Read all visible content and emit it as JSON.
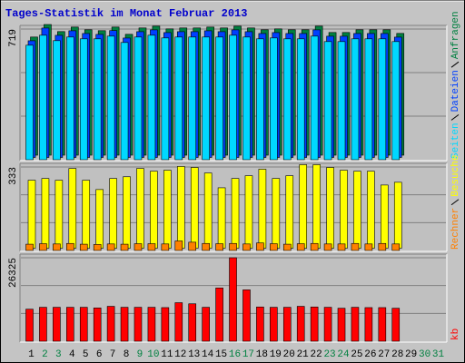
{
  "chart_data": {
    "type": "bar",
    "title": "Tages-Statistik im Monat Februar 2013",
    "categories": [
      "1",
      "2",
      "3",
      "4",
      "5",
      "6",
      "7",
      "8",
      "9",
      "10",
      "11",
      "12",
      "13",
      "14",
      "15",
      "16",
      "17",
      "18",
      "19",
      "20",
      "21",
      "22",
      "23",
      "24",
      "25",
      "26",
      "27",
      "28",
      "29",
      "30",
      "31"
    ],
    "category_colors": [
      "#000000",
      "#008040",
      "#008040",
      "#000000",
      "#000000",
      "#000000",
      "#000000",
      "#000000",
      "#008040",
      "#008040",
      "#000000",
      "#000000",
      "#000000",
      "#000000",
      "#000000",
      "#008040",
      "#008040",
      "#000000",
      "#000000",
      "#000000",
      "#000000",
      "#000000",
      "#008040",
      "#008040",
      "#000000",
      "#000000",
      "#000000",
      "#000000",
      "#000000",
      "#008040",
      "#008040"
    ],
    "panels": [
      {
        "ylim": [
          0,
          719
        ],
        "yticks": [
          719
        ],
        "series": [
          {
            "name": "Anfragen",
            "color": "#008040",
            "values": [
              650,
              719,
              680,
              705,
              690,
              685,
              705,
              665,
              700,
              710,
              695,
              700,
              700,
              705,
              700,
              710,
              700,
              690,
              695,
              690,
              690,
              710,
              675,
              675,
              690,
              690,
              690,
              670,
              null,
              null,
              null
            ]
          },
          {
            "name": "Dateien",
            "color": "#0040ff",
            "values": [
              642,
              712,
              672,
              697,
              682,
              677,
              698,
              657,
              692,
              702,
              687,
              692,
              692,
              697,
              692,
              702,
              692,
              682,
              687,
              682,
              682,
              702,
              667,
              667,
              682,
              682,
              682,
              662,
              null,
              null,
              null
            ]
          },
          {
            "name": "Seiten",
            "color": "#00d8ff",
            "values": [
              630,
              685,
              655,
              675,
              665,
              665,
              680,
              645,
              675,
              685,
              670,
              675,
              675,
              675,
              675,
              685,
              675,
              665,
              670,
              665,
              665,
              680,
              650,
              650,
              665,
              665,
              665,
              650,
              null,
              null,
              null
            ]
          }
        ]
      },
      {
        "ylim": [
          0,
          333
        ],
        "yticks": [
          333
        ],
        "series": [
          {
            "name": "Besuche",
            "color": "#ffff00",
            "values": [
              271,
              278,
              271,
              318,
              271,
              234,
              278,
              285,
              318,
              307,
              311,
              326,
              322,
              300,
              241,
              278,
              289,
              315,
              278,
              289,
              333,
              333,
              322,
              311,
              307,
              307,
              252,
              263,
              null,
              null,
              null
            ]
          },
          {
            "name": "Rechner",
            "color": "#ff8000",
            "values": [
              25,
              27,
              26,
              28,
              25,
              24,
              26,
              25,
              27,
              27,
              26,
              38,
              33,
              28,
              27,
              28,
              26,
              30,
              27,
              25,
              27,
              28,
              26,
              26,
              28,
              26,
              28,
              26,
              null,
              null,
              null
            ]
          }
        ]
      },
      {
        "ylim": [
          0,
          26325
        ],
        "yticks": [
          26325
        ],
        "series": [
          {
            "name": "kb",
            "color": "#ff0000",
            "values": [
              10100,
              10700,
              10700,
              10700,
              10700,
              10500,
              11000,
              10700,
              10700,
              10700,
              10600,
              12150,
              11800,
              10700,
              16800,
              26325,
              16200,
              10800,
              10700,
              10700,
              11000,
              10800,
              10700,
              10400,
              10700,
              10600,
              10600,
              10400,
              null,
              null,
              null
            ]
          }
        ]
      }
    ]
  }
}
